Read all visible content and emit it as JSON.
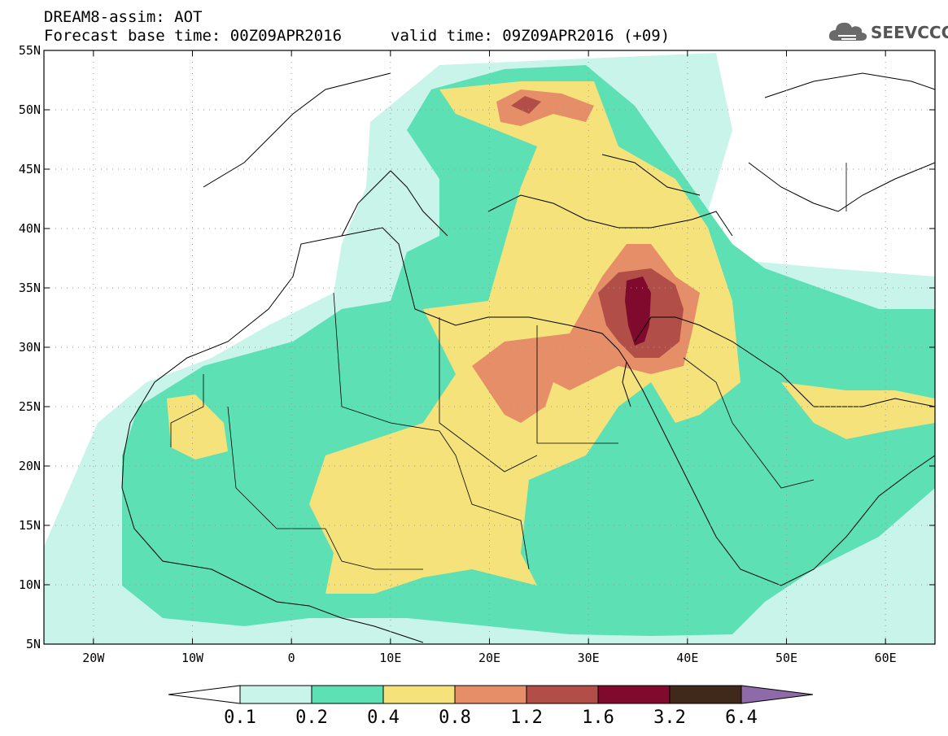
{
  "header": {
    "line1": "DREAM8-assim: AOT",
    "line2_left": "Forecast base time: 00Z09APR2016",
    "line2_right": "valid time: 09Z09APR2016 (+09)"
  },
  "logo": {
    "text": "SEEVCCC",
    "icon": "cloud-logo-icon"
  },
  "map": {
    "lat_labels": [
      "55N",
      "50N",
      "45N",
      "40N",
      "35N",
      "30N",
      "25N",
      "20N",
      "15N",
      "10N",
      "5N"
    ],
    "lon_labels": [
      "20W",
      "10W",
      "0",
      "10E",
      "20E",
      "30E",
      "40E",
      "50E",
      "60E"
    ],
    "lat_range": [
      5,
      55
    ],
    "lon_range": [
      -25,
      65
    ],
    "grid": "dotted"
  },
  "colorbar": {
    "labels": [
      "0.1",
      "0.2",
      "0.4",
      "0.8",
      "1.2",
      "1.6",
      "3.2",
      "6.4"
    ],
    "colors": [
      "#ffffff",
      "#c8f4ea",
      "#5ce0b4",
      "#f5e27a",
      "#e58e68",
      "#b04e47",
      "#7f0a2e",
      "#40281a",
      "#8e6aa8"
    ]
  }
}
